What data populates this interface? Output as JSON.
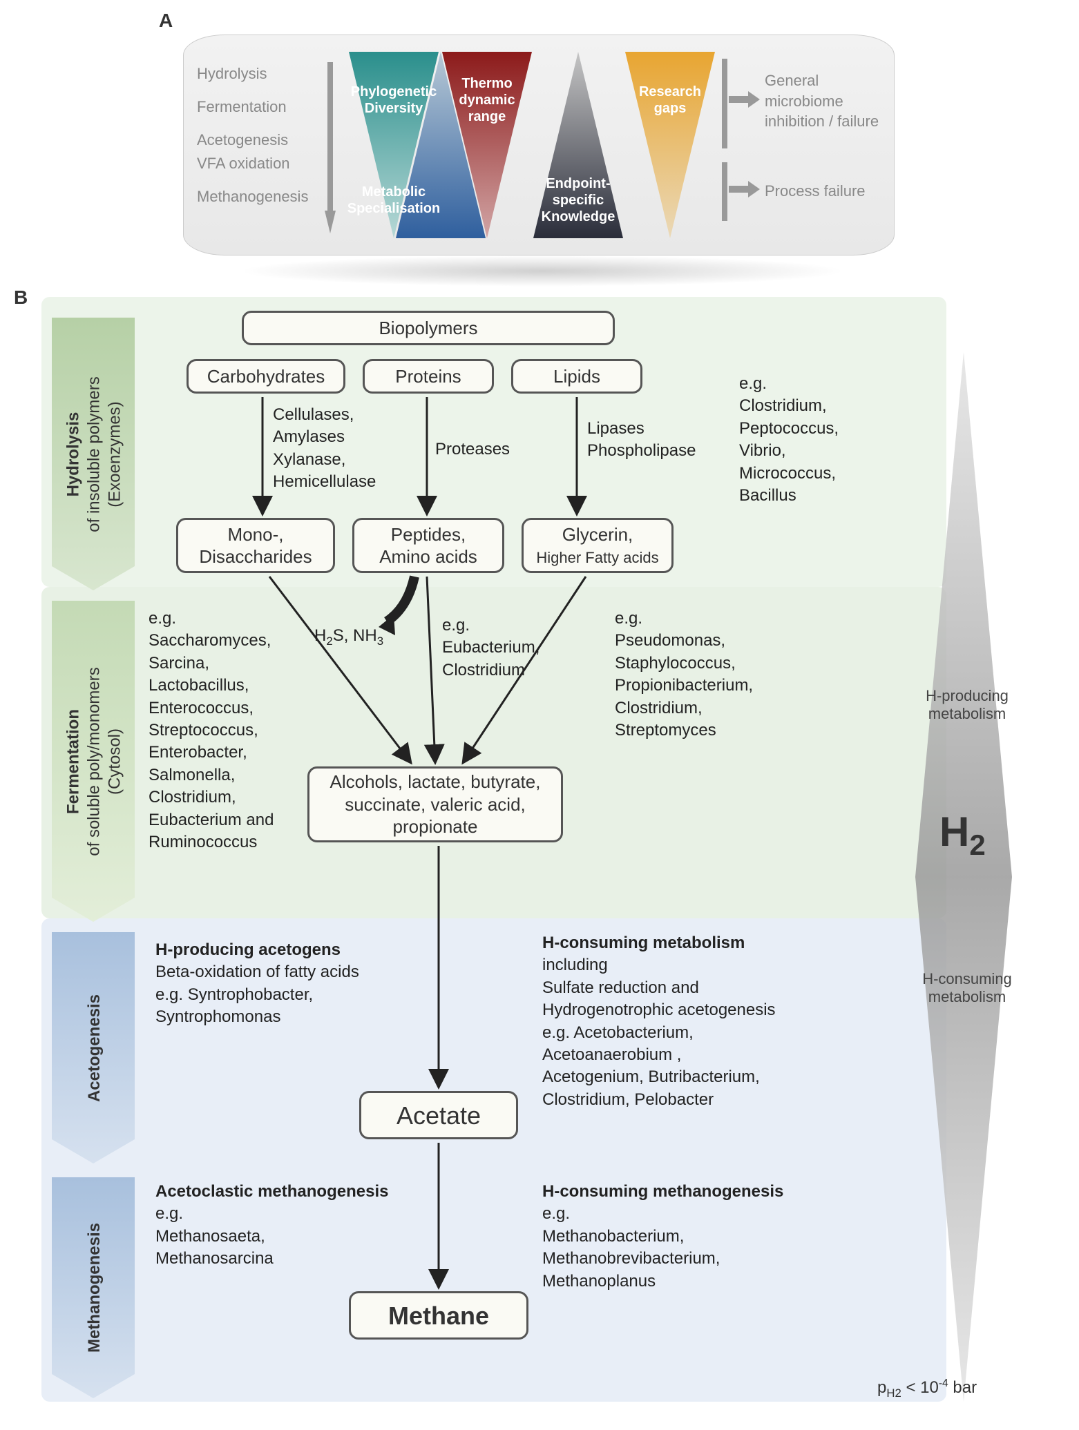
{
  "panelA": {
    "leftLabels": [
      "Hydrolysis",
      "Fermentation",
      "Acetogenesis\nVFA oxidation",
      "Methanogenesis"
    ],
    "triangles": {
      "t1": {
        "label": "Phylogenetic\nDiversity",
        "color1": "#2a8f8c",
        "color2": "#b7d8d6",
        "dir": "down"
      },
      "t2": {
        "label": "Metabolic\nSpecialisation",
        "color1": "#b8c9d6",
        "color2": "#2f5f9e",
        "dir": "up"
      },
      "t3": {
        "label": "Thermo\ndynamic\nrange",
        "color1": "#8c1a1a",
        "color2": "#d2a6a6",
        "dir": "down"
      },
      "t4": {
        "label": "Endpoint-\nspecific\nKnowledge",
        "color1": "#c5c5c5",
        "color2": "#2a2d3a",
        "dir": "up"
      },
      "t5": {
        "label": "Research\ngaps",
        "color1": "#e8a531",
        "color2": "#ead9b8",
        "dir": "down"
      }
    },
    "right1": "General\nmicrobiome\ninhibition / failure",
    "right2": "Process failure"
  },
  "panelB": {
    "stages": {
      "hydrolysis": "Hydrolysis\nof insoluble polymers\n(Exoenzymes)",
      "fermentation": "Fermentation\nof soluble poly/monomers\n(Cytosol)",
      "acetogenesis": "Acetogenesis",
      "methanogenesis": "Methanogenesis"
    },
    "nodes": {
      "biopolymers": "Biopolymers",
      "carbs": "Carbohydrates",
      "proteins": "Proteins",
      "lipids": "Lipids",
      "monodi": "Mono-,\nDisaccharides",
      "pep": "Peptides,\nAmino acids",
      "gly": "Glycerin,",
      "gly2": "Higher Fatty acids",
      "alc": "Alcohols, lactate, butyrate,\nsuccinate, valeric acid,\npropionate",
      "acetate": "Acetate",
      "methane": "Methane"
    },
    "enz": {
      "e1": "Cellulases,\nAmylases\nXylanase,\nHemicellulase",
      "e2": "Proteases",
      "e3": "Lipases\nPhospholipase"
    },
    "orgs": {
      "o1": "e.g.\nClostridium,\nPeptococcus,\nVibrio,\nMicrococcus,\nBacillus",
      "o2": "e.g.\nSaccharomyces,\nSarcina,\nLactobacillus,\nEnterococcus,\nStreptococcus,\nEnterobacter,\nSalmonella,\nClostridium,\nEubacterium and\nRuminococcus",
      "o3": "e.g.\nEubacterium,\nClostridium",
      "o4": "e.g.\nPseudomonas,\nStaphylococcus,\nPropionibacterium,\nClostridium,\nStreptomyces",
      "h2s": "H₂S, NH₃"
    },
    "aceto": {
      "a1h": "H-producing acetogens",
      "a1b": "Beta-oxidation of fatty acids\ne.g. Syntrophobacter,\nSyntrophomonas",
      "a2h": "H-consuming metabolism",
      "a2b": "including\nSulfate reduction and\nHydrogenotrophic acetogenesis\ne.g. Acetobacterium,\nAcetoanaerobium ,\nAcetogenium, Butribacterium,\nClostridium, Pelobacter"
    },
    "meth": {
      "m1h": "Acetoclastic methanogenesis",
      "m1b": "e.g.\nMethanosaeta,\nMethanosarcina",
      "m2h": "H-consuming methanogenesis",
      "m2b": "e.g.\nMethanobacterium,\nMethanobrevibacterium,\nMethanoplanus"
    },
    "rhombus": {
      "top": "H-producing\nmetabolism",
      "bot": "H-consuming\nmetabolism",
      "h2": "H₂"
    },
    "ph2": "p<sub>H2</sub> < 10<sup>-4</sup> bar"
  },
  "colors": {
    "arrow": "#333",
    "grayArrow": "#999",
    "stageGreen": "#b6d0a6",
    "stageGreenDark": "#a0c08e",
    "stageBlue": "#a8c0dd",
    "rhombus": "#a8a8a8"
  }
}
